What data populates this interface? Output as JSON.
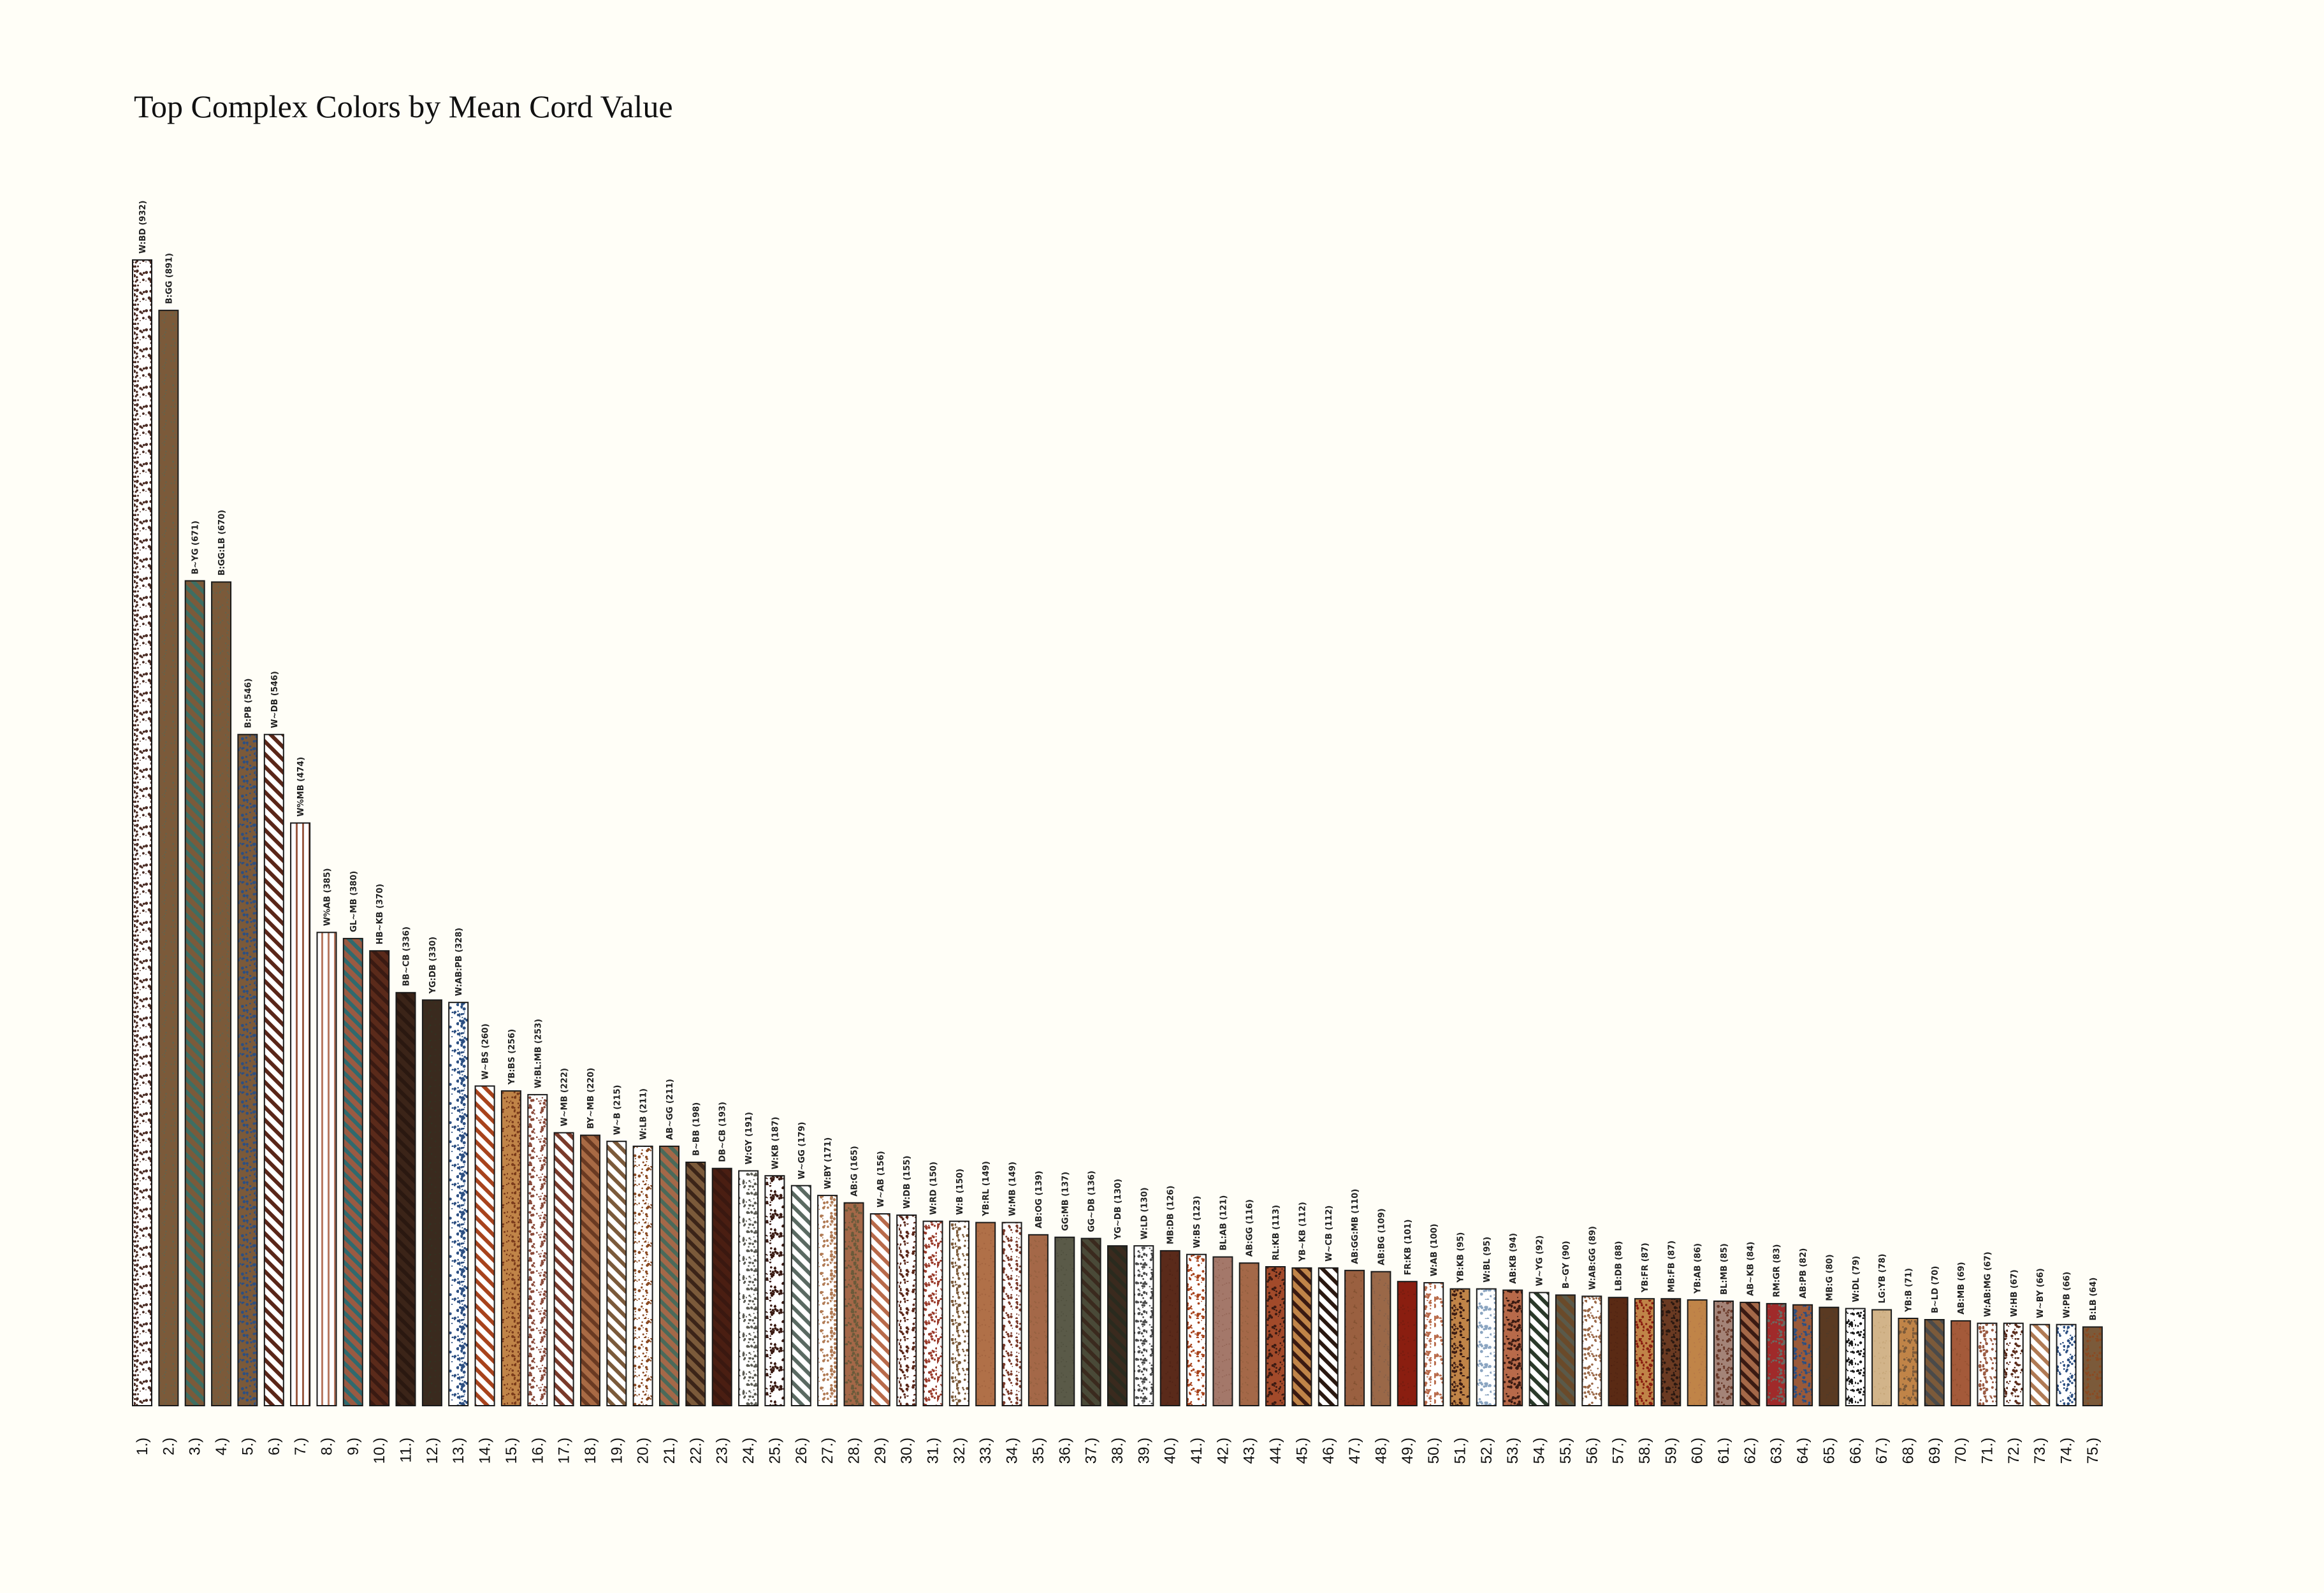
{
  "chart_data": {
    "type": "bar",
    "title": "Top Complex Colors by Mean Cord Value",
    "xlabel": "",
    "ylabel": "",
    "ylim": [
      0,
      932
    ],
    "grid": false,
    "legend": "none",
    "rank_suffix": ".)",
    "bars": [
      {
        "rank": 1,
        "label": "W:BD",
        "value": 932,
        "style": "dots",
        "colors": [
          "#ffffff",
          "#4a2a22"
        ]
      },
      {
        "rank": 2,
        "label": "B:GG",
        "value": 891,
        "style": "solid",
        "colors": [
          "#7b5a3a",
          "#4a6a5a"
        ]
      },
      {
        "rank": 3,
        "label": "B~YG",
        "value": 671,
        "style": "stripe",
        "colors": [
          "#7b5a3a",
          "#3e6e62"
        ]
      },
      {
        "rank": 4,
        "label": "B:GG:LB",
        "value": 670,
        "style": "solid",
        "colors": [
          "#7b5a3a",
          "#4a6a5a"
        ]
      },
      {
        "rank": 5,
        "label": "B:PB",
        "value": 546,
        "style": "dots",
        "colors": [
          "#7b5a3a",
          "#2c4f82"
        ]
      },
      {
        "rank": 6,
        "label": "W~DB",
        "value": 546,
        "style": "stripe",
        "colors": [
          "#ffffff",
          "#5a2618"
        ]
      },
      {
        "rank": 7,
        "label": "W%MB",
        "value": 474,
        "style": "vstripe",
        "colors": [
          "#ffffff",
          "#9a5a42"
        ]
      },
      {
        "rank": 8,
        "label": "W%AB",
        "value": 385,
        "style": "vstripe",
        "colors": [
          "#ffffff",
          "#b87a62"
        ]
      },
      {
        "rank": 9,
        "label": "GL~MB",
        "value": 380,
        "style": "stripe",
        "colors": [
          "#9a5a42",
          "#2f6a6e"
        ]
      },
      {
        "rank": 10,
        "label": "HB~KB",
        "value": 370,
        "style": "stripe",
        "colors": [
          "#5a2a1a",
          "#3a1a12"
        ]
      },
      {
        "rank": 11,
        "label": "BB~CB",
        "value": 336,
        "style": "stripe",
        "colors": [
          "#3b2418",
          "#2a1810"
        ]
      },
      {
        "rank": 12,
        "label": "YG:DB",
        "value": 330,
        "style": "solid",
        "colors": [
          "#3a2a1e",
          "#2a3a22"
        ]
      },
      {
        "rank": 13,
        "label": "W:AB:PB",
        "value": 328,
        "style": "dots",
        "colors": [
          "#ffffff",
          "#2c4f82"
        ]
      },
      {
        "rank": 14,
        "label": "W~BS",
        "value": 260,
        "style": "stripe",
        "colors": [
          "#ffffff",
          "#a8431c"
        ]
      },
      {
        "rank": 15,
        "label": "YB:BS",
        "value": 256,
        "style": "dots",
        "colors": [
          "#c08448",
          "#7a3a1a"
        ]
      },
      {
        "rank": 16,
        "label": "W:BL:MB",
        "value": 253,
        "style": "dots",
        "colors": [
          "#ffffff",
          "#8a4a3a"
        ]
      },
      {
        "rank": 17,
        "label": "W~MB",
        "value": 222,
        "style": "stripe",
        "colors": [
          "#ffffff",
          "#7a3a2a"
        ]
      },
      {
        "rank": 18,
        "label": "BY~MB",
        "value": 220,
        "style": "stripe",
        "colors": [
          "#a86a44",
          "#6a3a22"
        ]
      },
      {
        "rank": 19,
        "label": "W~B",
        "value": 215,
        "style": "stripe",
        "colors": [
          "#ffffff",
          "#7b5a3a"
        ]
      },
      {
        "rank": 20,
        "label": "W:LB",
        "value": 211,
        "style": "dots",
        "colors": [
          "#ffffff",
          "#8a4a22"
        ]
      },
      {
        "rank": 21,
        "label": "AB~GG",
        "value": 211,
        "style": "stripe",
        "colors": [
          "#a46848",
          "#4a6a5a"
        ]
      },
      {
        "rank": 22,
        "label": "B~BB",
        "value": 198,
        "style": "stripe",
        "colors": [
          "#7b5a3a",
          "#3b2418"
        ]
      },
      {
        "rank": 23,
        "label": "DB~CB",
        "value": 193,
        "style": "stripe",
        "colors": [
          "#4a1e12",
          "#3a1810"
        ]
      },
      {
        "rank": 24,
        "label": "W:GY",
        "value": 191,
        "style": "dots",
        "colors": [
          "#ffffff",
          "#5a5a52"
        ]
      },
      {
        "rank": 25,
        "label": "W:KB",
        "value": 187,
        "style": "dots",
        "colors": [
          "#ffffff",
          "#3a1a12"
        ]
      },
      {
        "rank": 26,
        "label": "W~GG",
        "value": 179,
        "style": "stripe",
        "colors": [
          "#ffffff",
          "#5a6a62"
        ]
      },
      {
        "rank": 27,
        "label": "W:BY",
        "value": 171,
        "style": "dots",
        "colors": [
          "#ffffff",
          "#b07a54"
        ]
      },
      {
        "rank": 28,
        "label": "AB:G",
        "value": 165,
        "style": "dots",
        "colors": [
          "#a46848",
          "#6a5a3a"
        ]
      },
      {
        "rank": 29,
        "label": "W~AB",
        "value": 156,
        "style": "stripe",
        "colors": [
          "#ffffff",
          "#b86a4a"
        ]
      },
      {
        "rank": 30,
        "label": "W:DB",
        "value": 155,
        "style": "dots",
        "colors": [
          "#ffffff",
          "#5a2618"
        ]
      },
      {
        "rank": 31,
        "label": "W:RD",
        "value": 150,
        "style": "dots",
        "colors": [
          "#ffffff",
          "#9a3a2a"
        ]
      },
      {
        "rank": 32,
        "label": "W:B",
        "value": 150,
        "style": "dots",
        "colors": [
          "#ffffff",
          "#7b5a3a"
        ]
      },
      {
        "rank": 33,
        "label": "YB:RL",
        "value": 149,
        "style": "solid",
        "colors": [
          "#b07048",
          "#9a5a3a"
        ]
      },
      {
        "rank": 34,
        "label": "W:MB",
        "value": 149,
        "style": "dots",
        "colors": [
          "#ffffff",
          "#7a3a2a"
        ]
      },
      {
        "rank": 35,
        "label": "AB:OG",
        "value": 139,
        "style": "solid",
        "colors": [
          "#a46848",
          "#8a5a3a"
        ]
      },
      {
        "rank": 36,
        "label": "GG:MB",
        "value": 137,
        "style": "solid",
        "colors": [
          "#5a5a48",
          "#4a4a3a"
        ]
      },
      {
        "rank": 37,
        "label": "GG~DB",
        "value": 136,
        "style": "stripe",
        "colors": [
          "#4a4a38",
          "#3a2a1e"
        ]
      },
      {
        "rank": 38,
        "label": "YG~DB",
        "value": 130,
        "style": "stripe",
        "colors": [
          "#3a2a1e",
          "#2a2a1e"
        ]
      },
      {
        "rank": 39,
        "label": "W:LD",
        "value": 130,
        "style": "dots",
        "colors": [
          "#ffffff",
          "#4a4a4a"
        ]
      },
      {
        "rank": 40,
        "label": "MB:DB",
        "value": 126,
        "style": "solid",
        "colors": [
          "#5a2a1a",
          "#4a1e12"
        ]
      },
      {
        "rank": 41,
        "label": "W:BS",
        "value": 123,
        "style": "dots",
        "colors": [
          "#ffffff",
          "#a8431c"
        ]
      },
      {
        "rank": 42,
        "label": "BL:AB",
        "value": 121,
        "style": "solid",
        "colors": [
          "#a4786a",
          "#8a5a4a"
        ]
      },
      {
        "rank": 43,
        "label": "AB:GG",
        "value": 116,
        "style": "solid",
        "colors": [
          "#a46848",
          "#8a5a3a"
        ]
      },
      {
        "rank": 44,
        "label": "RL:KB",
        "value": 113,
        "style": "dots",
        "colors": [
          "#a24a2a",
          "#3a1a12"
        ]
      },
      {
        "rank": 45,
        "label": "YB~KB",
        "value": 112,
        "style": "stripe",
        "colors": [
          "#c08448",
          "#3a1a12"
        ]
      },
      {
        "rank": 46,
        "label": "W~CB",
        "value": 112,
        "style": "stripe",
        "colors": [
          "#ffffff",
          "#2a1810"
        ]
      },
      {
        "rank": 47,
        "label": "AB:GG:MB",
        "value": 110,
        "style": "solid",
        "colors": [
          "#9a6040",
          "#7a4a2a"
        ]
      },
      {
        "rank": 48,
        "label": "AB:BG",
        "value": 109,
        "style": "solid",
        "colors": [
          "#9a6848",
          "#7a5a4a"
        ]
      },
      {
        "rank": 49,
        "label": "FR:KB",
        "value": 101,
        "style": "solid",
        "colors": [
          "#8a1e10",
          "#6a1a0e"
        ]
      },
      {
        "rank": 50,
        "label": "W:AB",
        "value": 100,
        "style": "dots",
        "colors": [
          "#ffffff",
          "#b86a4a"
        ]
      },
      {
        "rank": 51,
        "label": "YB:KB",
        "value": 95,
        "style": "dots",
        "colors": [
          "#c08448",
          "#3a1a12"
        ]
      },
      {
        "rank": 52,
        "label": "W:BL",
        "value": 95,
        "style": "dots",
        "colors": [
          "#ffffff",
          "#8aa4c0"
        ]
      },
      {
        "rank": 53,
        "label": "AB:KB",
        "value": 94,
        "style": "dots",
        "colors": [
          "#b86a4a",
          "#3a1a12"
        ]
      },
      {
        "rank": 54,
        "label": "W~YG",
        "value": 92,
        "style": "stripe",
        "colors": [
          "#ffffff",
          "#2a3a2a"
        ]
      },
      {
        "rank": 55,
        "label": "B~GY",
        "value": 90,
        "style": "stripe",
        "colors": [
          "#6a4a2a",
          "#5a5a4a"
        ]
      },
      {
        "rank": 56,
        "label": "W:AB:GG",
        "value": 89,
        "style": "dots",
        "colors": [
          "#ffffff",
          "#9a6848"
        ]
      },
      {
        "rank": 57,
        "label": "LB:DB",
        "value": 88,
        "style": "solid",
        "colors": [
          "#5a2a14",
          "#4a1e10"
        ]
      },
      {
        "rank": 58,
        "label": "YB:FR",
        "value": 87,
        "style": "dots",
        "colors": [
          "#c08448",
          "#8a1e10"
        ]
      },
      {
        "rank": 59,
        "label": "MB:FB",
        "value": 87,
        "style": "dots",
        "colors": [
          "#6a3a22",
          "#2a1810"
        ]
      },
      {
        "rank": 60,
        "label": "YB:AB",
        "value": 86,
        "style": "solid",
        "colors": [
          "#c08448",
          "#b07048"
        ]
      },
      {
        "rank": 61,
        "label": "BL:MB",
        "value": 85,
        "style": "dots",
        "colors": [
          "#a48478",
          "#6a3a2a"
        ]
      },
      {
        "rank": 62,
        "label": "AB~KB",
        "value": 84,
        "style": "stripe",
        "colors": [
          "#a46848",
          "#3a1a12"
        ]
      },
      {
        "rank": 63,
        "label": "RM:GR",
        "value": 83,
        "style": "dots",
        "colors": [
          "#a02a2a",
          "#6a6a62"
        ]
      },
      {
        "rank": 64,
        "label": "AB:PB",
        "value": 82,
        "style": "dots",
        "colors": [
          "#9a5a3a",
          "#2c4f82"
        ]
      },
      {
        "rank": 65,
        "label": "MB:G",
        "value": 80,
        "style": "solid",
        "colors": [
          "#5a3a22",
          "#4a3a2a"
        ]
      },
      {
        "rank": 66,
        "label": "W:DL",
        "value": 79,
        "style": "dots",
        "colors": [
          "#ffffff",
          "#1a1a1a"
        ]
      },
      {
        "rank": 67,
        "label": "LG:YB",
        "value": 78,
        "style": "solid",
        "colors": [
          "#d2b48a",
          "#c0a070"
        ]
      },
      {
        "rank": 68,
        "label": "YB:B",
        "value": 71,
        "style": "dots",
        "colors": [
          "#c08448",
          "#7b5a3a"
        ]
      },
      {
        "rank": 69,
        "label": "B~LD",
        "value": 70,
        "style": "stripe",
        "colors": [
          "#7b5a3a",
          "#4a4a4a"
        ]
      },
      {
        "rank": 70,
        "label": "AB:MB",
        "value": 69,
        "style": "solid",
        "colors": [
          "#a45a3a",
          "#8a4a2a"
        ]
      },
      {
        "rank": 71,
        "label": "W:AB:MG",
        "value": 67,
        "style": "dots",
        "colors": [
          "#ffffff",
          "#9a5a42"
        ]
      },
      {
        "rank": 72,
        "label": "W:HB",
        "value": 67,
        "style": "dots",
        "colors": [
          "#ffffff",
          "#5a2a1a"
        ]
      },
      {
        "rank": 73,
        "label": "W~BY",
        "value": 66,
        "style": "stripe",
        "colors": [
          "#ffffff",
          "#b07a54"
        ]
      },
      {
        "rank": 74,
        "label": "W:PB",
        "value": 66,
        "style": "dots",
        "colors": [
          "#ffffff",
          "#2c4f82"
        ]
      },
      {
        "rank": 75,
        "label": "B:LB",
        "value": 64,
        "style": "dots",
        "colors": [
          "#7b5a3a",
          "#8a4a22"
        ]
      }
    ]
  }
}
